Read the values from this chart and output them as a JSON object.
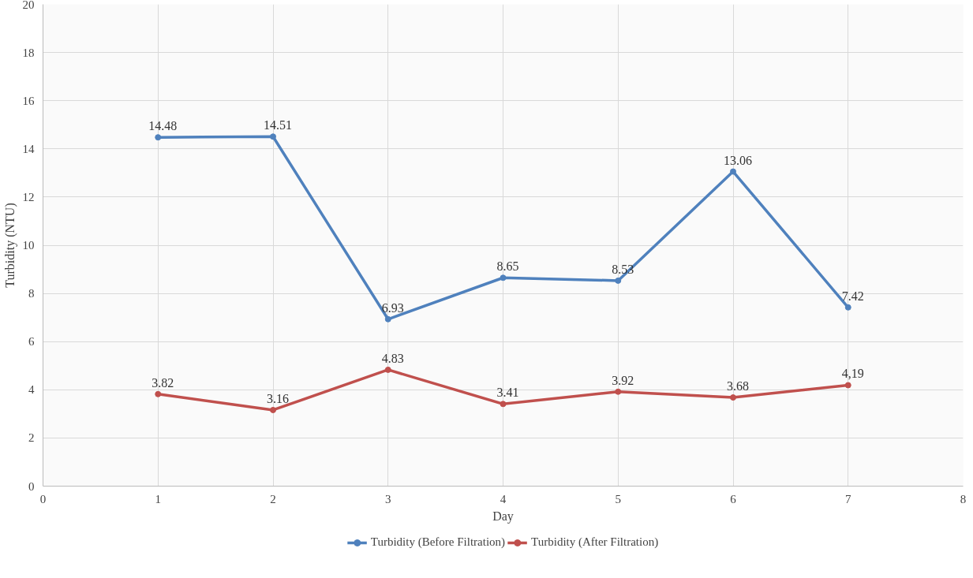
{
  "chart_data": {
    "type": "line",
    "xlabel": "Day",
    "ylabel": "Turbidity (NTU)",
    "x": [
      1,
      2,
      3,
      4,
      5,
      6,
      7
    ],
    "series": [
      {
        "name": "Turbidity (Before Filtration)",
        "color": "#4f81bd",
        "values": [
          14.48,
          14.51,
          6.93,
          8.65,
          8.53,
          13.06,
          7.42
        ],
        "value_labels": [
          "14.48",
          "14.51",
          "6.93",
          "8.65",
          "8.53",
          "13.06",
          "7.42"
        ]
      },
      {
        "name": "Turbidity (After Filtration)",
        "color": "#c0504d",
        "values": [
          3.82,
          3.16,
          4.83,
          3.41,
          3.92,
          3.68,
          4.19
        ],
        "value_labels": [
          "3.82",
          "3.16",
          "4.83",
          "3.41",
          "3.92",
          "3.68",
          "4,19"
        ]
      }
    ],
    "xlim": [
      0,
      8
    ],
    "xticks": [
      0,
      1,
      2,
      3,
      4,
      5,
      6,
      7,
      8
    ],
    "ylim": [
      0,
      20
    ],
    "yticks": [
      0,
      2,
      4,
      6,
      8,
      10,
      12,
      14,
      16,
      18,
      20
    ],
    "grid": true,
    "legend": "bottom",
    "marker": "circle",
    "line_style": "solid"
  }
}
